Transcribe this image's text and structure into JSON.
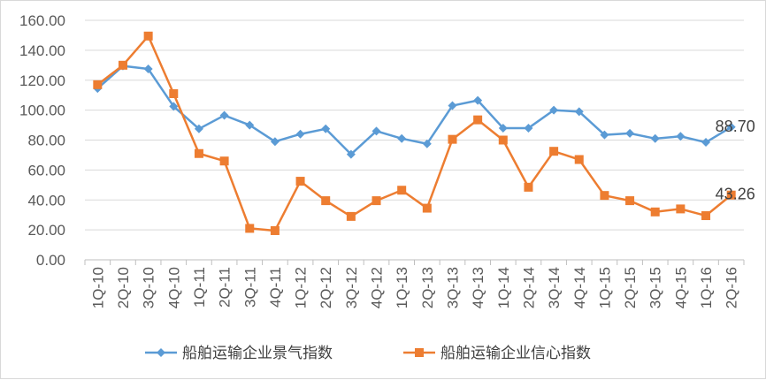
{
  "chart_data": {
    "type": "line",
    "title": "",
    "xlabel": "",
    "ylabel": "",
    "ylim": [
      0,
      160
    ],
    "yticks": [
      "0.00",
      "20.00",
      "40.00",
      "60.00",
      "80.00",
      "100.00",
      "120.00",
      "140.00",
      "160.00"
    ],
    "grid": "horizontal",
    "legend_position": "bottom",
    "categories": [
      "1Q-10",
      "2Q-10",
      "3Q-10",
      "4Q-10",
      "1Q-11",
      "2Q-11",
      "3Q-11",
      "4Q-11",
      "1Q-12",
      "2Q-12",
      "3Q-12",
      "4Q-12",
      "1Q-13",
      "2Q-13",
      "3Q-13",
      "4Q-13",
      "1Q-14",
      "2Q-14",
      "3Q-14",
      "4Q-14",
      "1Q-15",
      "2Q-15",
      "3Q-15",
      "4Q-15",
      "1Q-16",
      "2Q-16"
    ],
    "series": [
      {
        "name": "船舶运输企业景气指数",
        "color": "#5b9bd5",
        "marker": "diamond",
        "values": [
          114.5,
          129.5,
          127.5,
          102.5,
          87.5,
          96.5,
          90.0,
          79.0,
          84.0,
          87.5,
          70.5,
          86.0,
          81.0,
          77.5,
          103.0,
          106.5,
          88.0,
          88.0,
          100.0,
          99.0,
          83.5,
          84.5,
          81.0,
          82.5,
          78.5,
          88.7
        ],
        "last_label": "88.70"
      },
      {
        "name": "船舶运输企业信心指数",
        "color": "#ed7d31",
        "marker": "square",
        "values": [
          117.0,
          130.0,
          149.5,
          111.0,
          71.0,
          66.0,
          21.0,
          19.5,
          52.5,
          39.5,
          29.0,
          39.5,
          46.5,
          34.5,
          80.5,
          93.5,
          80.0,
          48.5,
          72.5,
          67.0,
          43.0,
          39.5,
          32.0,
          34.0,
          29.5,
          43.26
        ],
        "last_label": "43.26"
      }
    ]
  }
}
